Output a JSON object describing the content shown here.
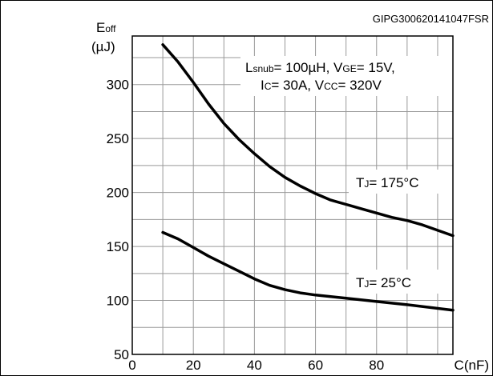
{
  "chart_data": {
    "type": "line",
    "figure_code": "GIPG300620141047FSR",
    "ylabel": {
      "main": "E",
      "sub": "off",
      "unit": "(µJ)"
    },
    "xlabel": "C(nF)",
    "xlim": [
      0,
      105
    ],
    "ylim": [
      50,
      345
    ],
    "x_ticks": [
      "0",
      "20",
      "40",
      "60",
      "80"
    ],
    "x_tick_values": [
      0,
      20,
      40,
      60,
      80
    ],
    "y_ticks": [
      "50",
      "100",
      "150",
      "200",
      "250",
      "300"
    ],
    "y_tick_values": [
      50,
      100,
      150,
      200,
      250,
      300
    ],
    "grid": true,
    "conditions": [
      {
        "id": "line1",
        "parts": [
          {
            "t": "L"
          },
          {
            "t": "snub",
            "sub": true
          },
          {
            "t": "= 100µH, V"
          },
          {
            "t": "GE",
            "sub": true
          },
          {
            "t": "= 15V,"
          }
        ]
      },
      {
        "id": "line2",
        "parts": [
          {
            "t": "I"
          },
          {
            "t": "C",
            "sub": true
          },
          {
            "t": "= 30A, V"
          },
          {
            "t": "CC",
            "sub": true
          },
          {
            "t": "= 320V"
          }
        ]
      }
    ],
    "series": [
      {
        "name": "TJ= 175°C",
        "label_parts": [
          {
            "t": "T"
          },
          {
            "t": "J",
            "sub": true
          },
          {
            "t": "= 175°C"
          }
        ],
        "x": [
          10,
          15,
          20,
          25,
          30,
          35,
          40,
          45,
          50,
          55,
          60,
          65,
          70,
          75,
          80,
          85,
          90,
          95,
          105
        ],
        "y": [
          337,
          321,
          302,
          282,
          264,
          249,
          236,
          224,
          214,
          206,
          199,
          193,
          189,
          185,
          181,
          177,
          174,
          170,
          160
        ]
      },
      {
        "name": "TJ= 25°C",
        "label_parts": [
          {
            "t": "T"
          },
          {
            "t": "J",
            "sub": true
          },
          {
            "t": "= 25°C"
          }
        ],
        "x": [
          10,
          15,
          20,
          25,
          30,
          35,
          40,
          45,
          50,
          55,
          60,
          70,
          80,
          90,
          105
        ],
        "y": [
          163,
          157,
          149,
          141,
          134,
          127,
          120,
          114,
          110,
          107,
          105,
          102,
          99,
          96,
          91
        ]
      }
    ]
  }
}
